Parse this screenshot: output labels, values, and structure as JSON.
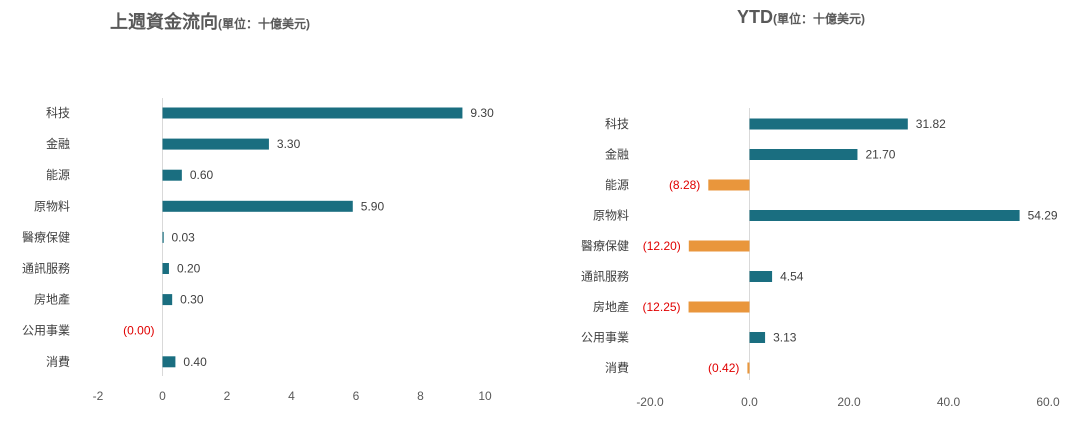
{
  "colors": {
    "positive": "#1a6e80",
    "negative": "#e9963c",
    "negative_text": "#e00000",
    "axis": "#d9d9d9",
    "text": "#404040"
  },
  "chart_data": [
    {
      "type": "bar",
      "orientation": "horizontal",
      "title": "上週資金流向",
      "title_unit": "(單位：十億美元)",
      "categories": [
        "科技",
        "金融",
        "能源",
        "原物料",
        "醫療保健",
        "通訊服務",
        "房地產",
        "公用事業",
        "消費"
      ],
      "values": [
        9.3,
        3.3,
        0.6,
        5.9,
        0.03,
        0.2,
        0.3,
        0.0,
        0.4
      ],
      "data_labels": [
        "9.30",
        "3.30",
        "0.60",
        "5.90",
        "0.03",
        "0.20",
        "0.30",
        "(0.00)",
        "0.40"
      ],
      "negative_labels": [
        false,
        false,
        false,
        false,
        false,
        false,
        false,
        true,
        false
      ],
      "xlim": [
        -2,
        10
      ],
      "xticks": [
        -2,
        0,
        2,
        4,
        6,
        8,
        10
      ],
      "xtick_labels": [
        "-2",
        "0",
        "2",
        "4",
        "6",
        "8",
        "10"
      ],
      "grid": false,
      "legend": "none"
    },
    {
      "type": "bar",
      "orientation": "horizontal",
      "title": "YTD",
      "title_unit": "(單位：十億美元)",
      "categories": [
        "科技",
        "金融",
        "能源",
        "原物料",
        "醫療保健",
        "通訊服務",
        "房地產",
        "公用事業",
        "消費"
      ],
      "values": [
        31.82,
        21.7,
        -8.28,
        54.29,
        -12.2,
        4.54,
        -12.25,
        3.13,
        -0.42
      ],
      "data_labels": [
        "31.82",
        "21.70",
        "(8.28)",
        "54.29",
        "(12.20)",
        "4.54",
        "(12.25)",
        "3.13",
        "(0.42)"
      ],
      "negative_labels": [
        false,
        false,
        true,
        false,
        true,
        false,
        true,
        false,
        true
      ],
      "xlim": [
        -20,
        60
      ],
      "xticks": [
        -20,
        0,
        20,
        40,
        60
      ],
      "xtick_labels": [
        "-20.0",
        "0.0",
        "20.0",
        "40.0",
        "60.0"
      ],
      "grid": false,
      "legend": "none"
    }
  ]
}
